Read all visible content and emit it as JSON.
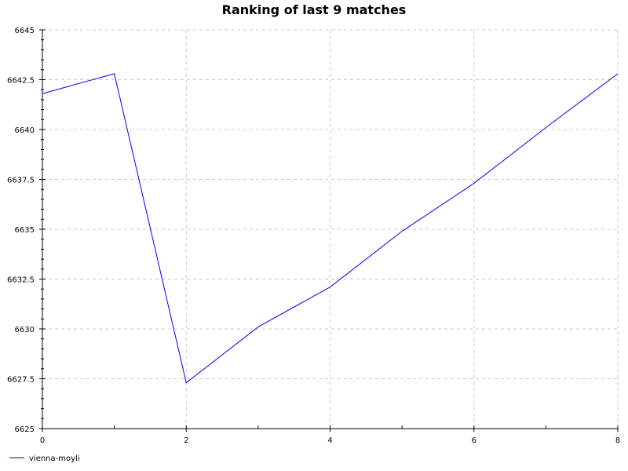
{
  "chart_data": {
    "type": "line",
    "title": "Ranking of last 9 matches",
    "xlabel": "",
    "ylabel": "",
    "xlim": [
      0,
      8
    ],
    "ylim": [
      6625,
      6645
    ],
    "x_ticks": [
      0,
      2,
      4,
      6,
      8
    ],
    "y_ticks": [
      6625,
      6627.5,
      6630,
      6632.5,
      6635,
      6637.5,
      6640,
      6642.5,
      6645
    ],
    "x_ticks_labels": [
      "0",
      "2",
      "4",
      "6",
      "8"
    ],
    "y_ticks_labels": [
      "6625",
      "6627.5",
      "6630",
      "6632.5",
      "6635",
      "6637.5",
      "6640",
      "6642.5",
      "6645"
    ],
    "grid": true,
    "legend_position": "bottom-left",
    "series": [
      {
        "name": "vienna-moyli",
        "color": "#0000ff",
        "x": [
          0,
          1,
          2,
          3,
          4,
          5,
          6,
          7,
          8
        ],
        "y": [
          6641.8,
          6642.8,
          6627.3,
          6630.1,
          6632.1,
          6634.9,
          6637.3,
          6640.1,
          6642.8
        ]
      }
    ]
  }
}
